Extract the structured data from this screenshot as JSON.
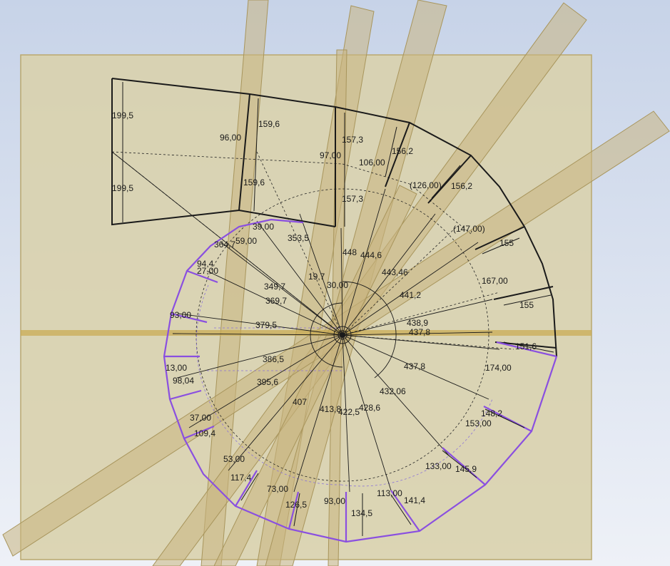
{
  "canvas": {
    "background_top": "#c7d3e8",
    "background_bottom": "#eef1f7",
    "workplane_fill": "#d9d2ad",
    "workplane_stroke": "#b9a86e",
    "stringer_fill": "#c8b57f",
    "sketch_black": "#1a1a1a",
    "sketch_purple": "#8a4fe0",
    "construction_purple": "#8b72d8"
  },
  "dimensions": {
    "d_199_5_top": "199,5",
    "d_199_5_bottom": "199,5",
    "d_159_6_top": "159,6",
    "d_159_6_bottom": "159,6",
    "d_96": "96,00",
    "d_157_3_top": "157,3",
    "d_157_3_bottom": "157,3",
    "d_97": "97,00",
    "d_106": "106,00",
    "d_156_2_a": "156,2",
    "d_156_2_b": "156,2",
    "d_126": "(126,00)",
    "d_147": "(147,00)",
    "d_155_a": "155",
    "d_155_b": "155",
    "d_167": "167,00",
    "d_151_6": "151,6",
    "d_174": "174,00",
    "d_448": "448",
    "d_444_6": "444,6",
    "d_443_46": "443,46",
    "d_441_2": "441,2",
    "d_438_9": "438,9",
    "d_437_8_a": "437,8",
    "d_437_8_b": "437,8",
    "d_432_06": "432,06",
    "d_428_6": "428,6",
    "d_422_5": "422,5",
    "d_413_8": "413,8",
    "d_407": "407",
    "d_395_6": "395,6",
    "d_386_5": "386,5",
    "d_379_5": "379,5",
    "d_369_7": "369,7",
    "d_364_7": "364,7",
    "d_353_5": "353,5",
    "d_349_7": "349,7",
    "d_148_2": "148,2",
    "d_153": "153,00",
    "d_145_9": "145,9",
    "d_133": "133,00",
    "d_141_4": "141,4",
    "d_113": "113,00",
    "d_134_5": "134,5",
    "d_93": "93,00",
    "d_126_5": "126,5",
    "d_73": "73,00",
    "d_117_4": "117,4",
    "d_53": "53,00",
    "d_109_4": "109,4",
    "d_37": "37,00",
    "d_98_04": "98,04",
    "d_13": "13,00",
    "d_27": "27,00",
    "d_94_4": "94,4",
    "d_59": "59,00",
    "d_39_a": "39,00",
    "d_93_b": "93,00",
    "d_19_7": "19,7",
    "d_30": "30,00"
  }
}
